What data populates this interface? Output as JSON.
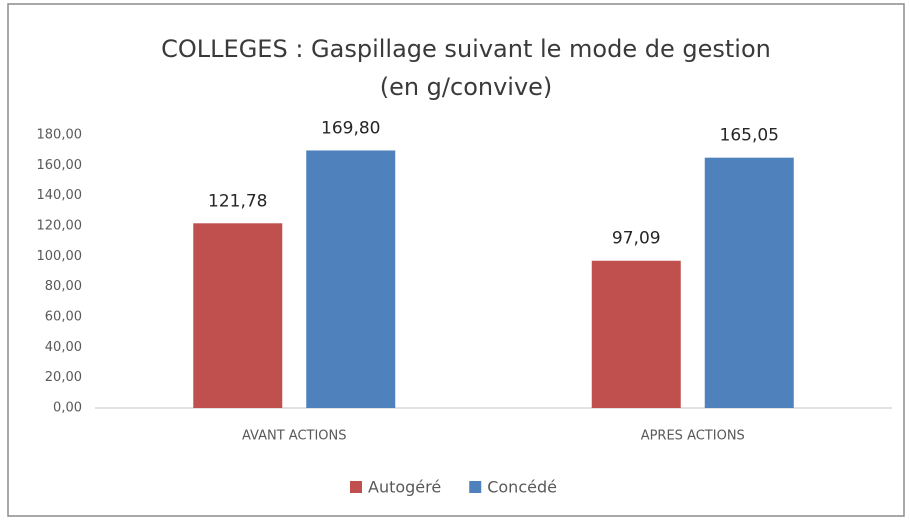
{
  "chart_data": {
    "type": "bar",
    "title": "COLLEGES : Gaspillage suivant le mode de gestion",
    "subtitle": "(en g/convive)",
    "categories": [
      "AVANT ACTIONS",
      "APRES ACTIONS"
    ],
    "series": [
      {
        "name": "Autogéré",
        "color": "#c0504d",
        "values": [
          121.78,
          97.09
        ],
        "value_labels": [
          "121,78",
          "97,09"
        ]
      },
      {
        "name": "Concédé",
        "color": "#4f81bd",
        "values": [
          169.8,
          165.05
        ],
        "value_labels": [
          "169,80",
          "165,05"
        ]
      }
    ],
    "ylim": [
      0,
      180
    ],
    "yticks": [
      {
        "value": 0,
        "label": "0,00"
      },
      {
        "value": 20,
        "label": "20,00"
      },
      {
        "value": 40,
        "label": "40,00"
      },
      {
        "value": 60,
        "label": "60,00"
      },
      {
        "value": 80,
        "label": "80,00"
      },
      {
        "value": 100,
        "label": "100,00"
      },
      {
        "value": 120,
        "label": "120,00"
      },
      {
        "value": 140,
        "label": "140,00"
      },
      {
        "value": 160,
        "label": "160,00"
      },
      {
        "value": 180,
        "label": "180,00"
      }
    ],
    "grid": false,
    "legend": "bottom"
  }
}
